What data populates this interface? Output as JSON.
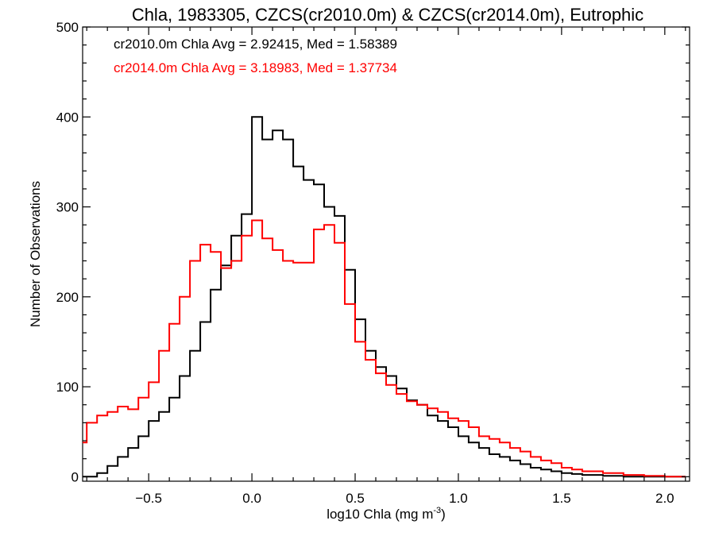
{
  "chart_data": {
    "type": "line",
    "title": "Chla, 1983305, CZCS(cr2010.0m) & CZCS(cr2014.0m), Eutrophic",
    "xlabel": "log10 Chla (mg m",
    "xlabel_sup": "-3",
    "xlabel_suffix": ")",
    "ylabel": "Number of Observations",
    "xlim": [
      -0.82,
      2.12
    ],
    "ylim": [
      -5,
      500
    ],
    "xticks": [
      -0.5,
      0.0,
      0.5,
      1.0,
      1.5,
      2.0
    ],
    "xtick_labels": [
      "−0.5",
      "0.0",
      "0.5",
      "1.0",
      "1.5",
      "2.0"
    ],
    "yticks": [
      0,
      100,
      200,
      300,
      400,
      500
    ],
    "ytick_labels": [
      "0",
      "100",
      "200",
      "300",
      "400",
      "500"
    ],
    "grid": false,
    "annotations": [
      {
        "text": "cr2010.0m Chla Avg = 2.92415, Med = 1.58389",
        "color": "#000000"
      },
      {
        "text": "cr2014.0m Chla Avg = 3.18983, Med = 1.37734",
        "color": "#ff0000"
      }
    ],
    "series": [
      {
        "color": "#000000",
        "style": "step",
        "points": [
          [
            -0.82,
            0
          ],
          [
            -0.75,
            4
          ],
          [
            -0.7,
            12
          ],
          [
            -0.65,
            22
          ],
          [
            -0.6,
            32
          ],
          [
            -0.55,
            45
          ],
          [
            -0.5,
            62
          ],
          [
            -0.45,
            72
          ],
          [
            -0.4,
            88
          ],
          [
            -0.35,
            112
          ],
          [
            -0.3,
            140
          ],
          [
            -0.25,
            172
          ],
          [
            -0.2,
            208
          ],
          [
            -0.15,
            235
          ],
          [
            -0.1,
            268
          ],
          [
            -0.05,
            292
          ],
          [
            0.0,
            400
          ],
          [
            0.05,
            375
          ],
          [
            0.1,
            385
          ],
          [
            0.15,
            375
          ],
          [
            0.2,
            345
          ],
          [
            0.25,
            330
          ],
          [
            0.3,
            325
          ],
          [
            0.35,
            300
          ],
          [
            0.4,
            290
          ],
          [
            0.45,
            230
          ],
          [
            0.5,
            175
          ],
          [
            0.55,
            140
          ],
          [
            0.6,
            122
          ],
          [
            0.65,
            112
          ],
          [
            0.7,
            98
          ],
          [
            0.75,
            85
          ],
          [
            0.8,
            80
          ],
          [
            0.85,
            68
          ],
          [
            0.9,
            62
          ],
          [
            0.95,
            55
          ],
          [
            1.0,
            45
          ],
          [
            1.05,
            38
          ],
          [
            1.1,
            32
          ],
          [
            1.15,
            25
          ],
          [
            1.2,
            22
          ],
          [
            1.25,
            18
          ],
          [
            1.3,
            14
          ],
          [
            1.35,
            10
          ],
          [
            1.4,
            8
          ],
          [
            1.45,
            6
          ],
          [
            1.5,
            4
          ],
          [
            1.55,
            3
          ],
          [
            1.6,
            2
          ],
          [
            1.7,
            1
          ],
          [
            1.8,
            0
          ],
          [
            2.1,
            0
          ]
        ]
      },
      {
        "color": "#ff0000",
        "style": "step",
        "points": [
          [
            -0.82,
            38
          ],
          [
            -0.8,
            60
          ],
          [
            -0.75,
            68
          ],
          [
            -0.7,
            72
          ],
          [
            -0.65,
            78
          ],
          [
            -0.6,
            75
          ],
          [
            -0.55,
            88
          ],
          [
            -0.5,
            105
          ],
          [
            -0.45,
            140
          ],
          [
            -0.4,
            170
          ],
          [
            -0.35,
            200
          ],
          [
            -0.3,
            240
          ],
          [
            -0.25,
            258
          ],
          [
            -0.2,
            250
          ],
          [
            -0.15,
            232
          ],
          [
            -0.1,
            240
          ],
          [
            -0.05,
            268
          ],
          [
            0.0,
            285
          ],
          [
            0.05,
            265
          ],
          [
            0.1,
            252
          ],
          [
            0.15,
            240
          ],
          [
            0.2,
            238
          ],
          [
            0.25,
            238
          ],
          [
            0.3,
            275
          ],
          [
            0.35,
            280
          ],
          [
            0.4,
            260
          ],
          [
            0.45,
            192
          ],
          [
            0.5,
            150
          ],
          [
            0.55,
            130
          ],
          [
            0.6,
            115
          ],
          [
            0.65,
            102
          ],
          [
            0.7,
            92
          ],
          [
            0.75,
            84
          ],
          [
            0.8,
            80
          ],
          [
            0.85,
            76
          ],
          [
            0.9,
            72
          ],
          [
            0.95,
            65
          ],
          [
            1.0,
            62
          ],
          [
            1.05,
            55
          ],
          [
            1.1,
            45
          ],
          [
            1.15,
            42
          ],
          [
            1.2,
            38
          ],
          [
            1.25,
            32
          ],
          [
            1.3,
            28
          ],
          [
            1.35,
            22
          ],
          [
            1.4,
            18
          ],
          [
            1.45,
            15
          ],
          [
            1.5,
            10
          ],
          [
            1.55,
            8
          ],
          [
            1.6,
            6
          ],
          [
            1.7,
            4
          ],
          [
            1.8,
            2
          ],
          [
            1.9,
            1
          ],
          [
            2.0,
            0
          ],
          [
            2.1,
            0
          ]
        ]
      }
    ]
  }
}
